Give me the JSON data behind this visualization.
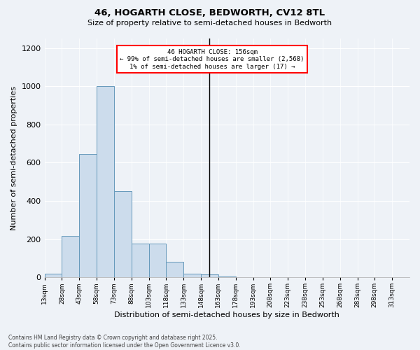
{
  "title": "46, HOGARTH CLOSE, BEDWORTH, CV12 8TL",
  "subtitle": "Size of property relative to semi-detached houses in Bedworth",
  "xlabel": "Distribution of semi-detached houses by size in Bedworth",
  "ylabel": "Number of semi-detached properties",
  "bar_color": "#ccdcec",
  "bar_edge_color": "#6699bb",
  "background_color": "#eef2f7",
  "annotation_line_bin": 9.5,
  "annotation_text_line1": "46 HOGARTH CLOSE: 156sqm",
  "annotation_text_line2": "← 99% of semi-detached houses are smaller (2,568)",
  "annotation_text_line3": "1% of semi-detached houses are larger (17) →",
  "footer_line1": "Contains HM Land Registry data © Crown copyright and database right 2025.",
  "footer_line2": "Contains public sector information licensed under the Open Government Licence v3.0.",
  "bin_labels": [
    "13sqm",
    "28sqm",
    "43sqm",
    "58sqm",
    "73sqm",
    "88sqm",
    "103sqm",
    "118sqm",
    "133sqm",
    "148sqm",
    "163sqm",
    "178sqm",
    "193sqm",
    "208sqm",
    "223sqm",
    "238sqm",
    "253sqm",
    "268sqm",
    "283sqm",
    "298sqm",
    "313sqm"
  ],
  "counts": [
    20,
    215,
    645,
    1000,
    450,
    175,
    175,
    80,
    20,
    15,
    5,
    0,
    0,
    0,
    0,
    0,
    0,
    0,
    0,
    0
  ],
  "ylim": [
    0,
    1250
  ],
  "yticks": [
    0,
    200,
    400,
    600,
    800,
    1000,
    1200
  ]
}
